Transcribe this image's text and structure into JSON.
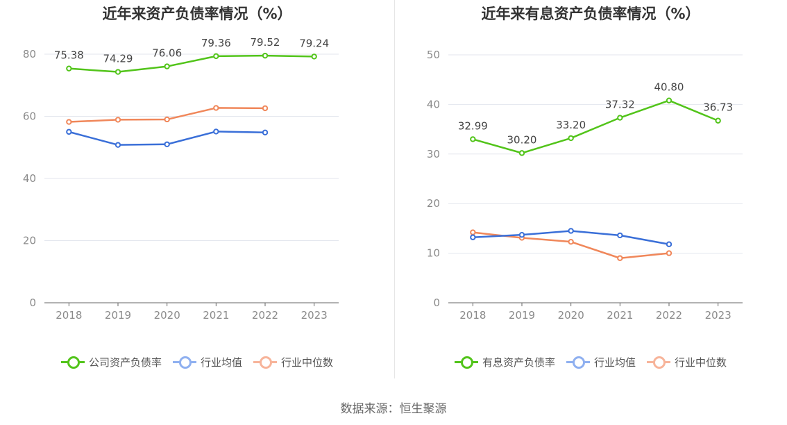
{
  "source": "数据来源：恒生聚源",
  "chart_data": [
    {
      "type": "line",
      "title": "近年来资产负债率情况（%）",
      "categories": [
        "2018",
        "2019",
        "2020",
        "2021",
        "2022",
        "2023"
      ],
      "ylim": [
        0,
        80
      ],
      "yticks": [
        0,
        20,
        40,
        60,
        80
      ],
      "grid": true,
      "legend_position": "bottom",
      "series": [
        {
          "name": "公司资产负债率",
          "color": "#52c41a",
          "values": [
            75.38,
            74.29,
            76.06,
            79.36,
            79.52,
            79.24
          ],
          "labels": [
            "75.38",
            "74.29",
            "76.06",
            "79.36",
            "79.52",
            "79.24"
          ],
          "show_labels": true
        },
        {
          "name": "行业均值",
          "color": "#3a6fd8",
          "legend_color": "#8fb0f0",
          "values": [
            55.0,
            50.8,
            51.0,
            55.1,
            54.8,
            null
          ],
          "show_labels": false
        },
        {
          "name": "行业中位数",
          "color": "#f0875a",
          "legend_color": "#f7b49a",
          "values": [
            58.2,
            58.9,
            59.0,
            62.7,
            62.6,
            null
          ],
          "show_labels": false
        }
      ]
    },
    {
      "type": "line",
      "title": "近年来有息资产负债率情况（%）",
      "categories": [
        "2018",
        "2019",
        "2020",
        "2021",
        "2022",
        "2023"
      ],
      "ylim": [
        0,
        50
      ],
      "yticks": [
        0,
        10,
        20,
        30,
        40,
        50
      ],
      "grid": true,
      "legend_position": "bottom",
      "series": [
        {
          "name": "有息资产负债率",
          "color": "#52c41a",
          "values": [
            32.99,
            30.2,
            33.2,
            37.32,
            40.8,
            36.73
          ],
          "labels": [
            "32.99",
            "30.20",
            "33.20",
            "37.32",
            "40.80",
            "36.73"
          ],
          "show_labels": true
        },
        {
          "name": "行业均值",
          "color": "#3a6fd8",
          "legend_color": "#8fb0f0",
          "values": [
            13.2,
            13.7,
            14.5,
            13.6,
            11.8,
            null
          ],
          "show_labels": false
        },
        {
          "name": "行业中位数",
          "color": "#f0875a",
          "legend_color": "#f7b49a",
          "values": [
            14.2,
            13.1,
            12.3,
            9.0,
            10.0,
            null
          ],
          "show_labels": false
        }
      ]
    }
  ]
}
